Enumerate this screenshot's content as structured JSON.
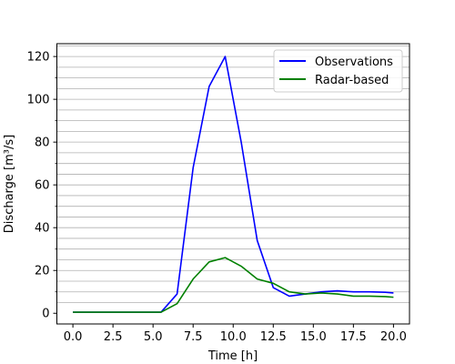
{
  "chart_data": {
    "type": "line",
    "title": "",
    "xlabel": "Time [h]",
    "ylabel": "Discharge [m³/s]",
    "xlim": [
      -1,
      21
    ],
    "ylim": [
      -5,
      126
    ],
    "xticks": [
      0.0,
      2.5,
      5.0,
      7.5,
      10.0,
      12.5,
      15.0,
      17.5,
      20.0
    ],
    "xtick_labels": [
      "0.0",
      "2.5",
      "5.0",
      "7.5",
      "10.0",
      "12.5",
      "15.0",
      "17.5",
      "20.0"
    ],
    "yticks": [
      0,
      20,
      40,
      60,
      80,
      100,
      120
    ],
    "ytick_labels": [
      "0",
      "20",
      "40",
      "60",
      "80",
      "100",
      "120"
    ],
    "minor_yticks": [
      10,
      30,
      50,
      70,
      90,
      110
    ],
    "grid": {
      "y": true,
      "x": false,
      "y_lines": [
        5,
        10,
        15,
        20,
        25,
        30,
        35,
        40,
        45,
        50,
        55,
        60,
        65,
        70,
        75,
        80,
        85,
        90,
        95,
        100,
        105,
        110,
        115,
        120,
        125
      ]
    },
    "legend_position": "top-right",
    "series": [
      {
        "name": "Observations",
        "color": "#0000ff",
        "x": [
          0,
          1,
          2,
          3,
          4,
          5,
          5.5,
          6.5,
          7.5,
          8.5,
          9.5,
          10.5,
          11.5,
          12.5,
          13.5,
          14.5,
          15.5,
          16.5,
          17.5,
          18.5,
          19.5,
          20
        ],
        "y": [
          0.5,
          0.5,
          0.5,
          0.5,
          0.5,
          0.5,
          0.5,
          9,
          68,
          106,
          120,
          80,
          34,
          12,
          8,
          9,
          10,
          10.5,
          10,
          10,
          9.8,
          9.5
        ]
      },
      {
        "name": "Radar-based",
        "color": "#008000",
        "x": [
          0,
          1,
          2,
          3,
          4,
          5,
          5.5,
          6.5,
          7.5,
          8.5,
          9.5,
          10.5,
          11.5,
          12.5,
          13.5,
          14.5,
          15.5,
          16.5,
          17.5,
          18.5,
          19.5,
          20
        ],
        "y": [
          0.5,
          0.5,
          0.5,
          0.5,
          0.5,
          0.5,
          0.5,
          4.5,
          16,
          24,
          26,
          22,
          16,
          14,
          10,
          9,
          9.5,
          9,
          8,
          8,
          7.8,
          7.5
        ]
      }
    ]
  }
}
